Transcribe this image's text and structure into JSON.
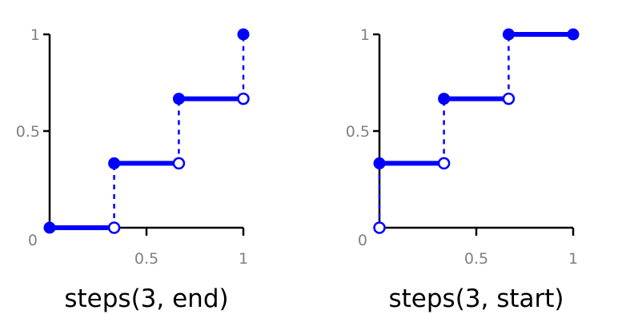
{
  "colors": {
    "series": "#0000ff",
    "axis": "#000000",
    "tick": "#808080"
  },
  "chart_data": [
    {
      "type": "line",
      "title": "steps(3, end)",
      "xlim": [
        0,
        1
      ],
      "ylim": [
        0,
        1
      ],
      "x_ticks": [
        "0.5",
        "1"
      ],
      "y_ticks": [
        "0",
        "0.5",
        "1"
      ],
      "segments": [
        {
          "x": [
            0,
            0.333
          ],
          "y": [
            0,
            0
          ]
        },
        {
          "x": [
            0.333,
            0.667
          ],
          "y": [
            0.333,
            0.333
          ]
        },
        {
          "x": [
            0.667,
            1
          ],
          "y": [
            0.667,
            0.667
          ]
        }
      ],
      "filled_points": [
        {
          "x": 0,
          "y": 0
        },
        {
          "x": 0.333,
          "y": 0.333
        },
        {
          "x": 0.667,
          "y": 0.667
        },
        {
          "x": 1,
          "y": 1
        }
      ],
      "open_points": [
        {
          "x": 0.333,
          "y": 0
        },
        {
          "x": 0.667,
          "y": 0.333
        },
        {
          "x": 1,
          "y": 0.667
        }
      ],
      "jumps": [
        {
          "x": 0.333,
          "y": [
            0,
            0.333
          ]
        },
        {
          "x": 0.667,
          "y": [
            0.333,
            0.667
          ]
        },
        {
          "x": 1,
          "y": [
            0.667,
            1
          ]
        }
      ]
    },
    {
      "type": "line",
      "title": "steps(3, start)",
      "xlim": [
        0,
        1
      ],
      "ylim": [
        0,
        1
      ],
      "x_ticks": [
        "0.5",
        "1"
      ],
      "y_ticks": [
        "0",
        "0.5",
        "1"
      ],
      "segments": [
        {
          "x": [
            0,
            0.333
          ],
          "y": [
            0.333,
            0.333
          ]
        },
        {
          "x": [
            0.333,
            0.667
          ],
          "y": [
            0.667,
            0.667
          ]
        },
        {
          "x": [
            0.667,
            1
          ],
          "y": [
            1,
            1
          ]
        }
      ],
      "filled_points": [
        {
          "x": 0,
          "y": 0.333
        },
        {
          "x": 0.333,
          "y": 0.667
        },
        {
          "x": 0.667,
          "y": 1
        },
        {
          "x": 1,
          "y": 1
        }
      ],
      "open_points": [
        {
          "x": 0,
          "y": 0
        },
        {
          "x": 0.333,
          "y": 0.333
        },
        {
          "x": 0.667,
          "y": 0.667
        }
      ],
      "jumps": [
        {
          "x": 0,
          "y": [
            0,
            0.333
          ]
        },
        {
          "x": 0.333,
          "y": [
            0.333,
            0.667
          ]
        },
        {
          "x": 0.667,
          "y": [
            0.667,
            1
          ]
        }
      ]
    }
  ]
}
